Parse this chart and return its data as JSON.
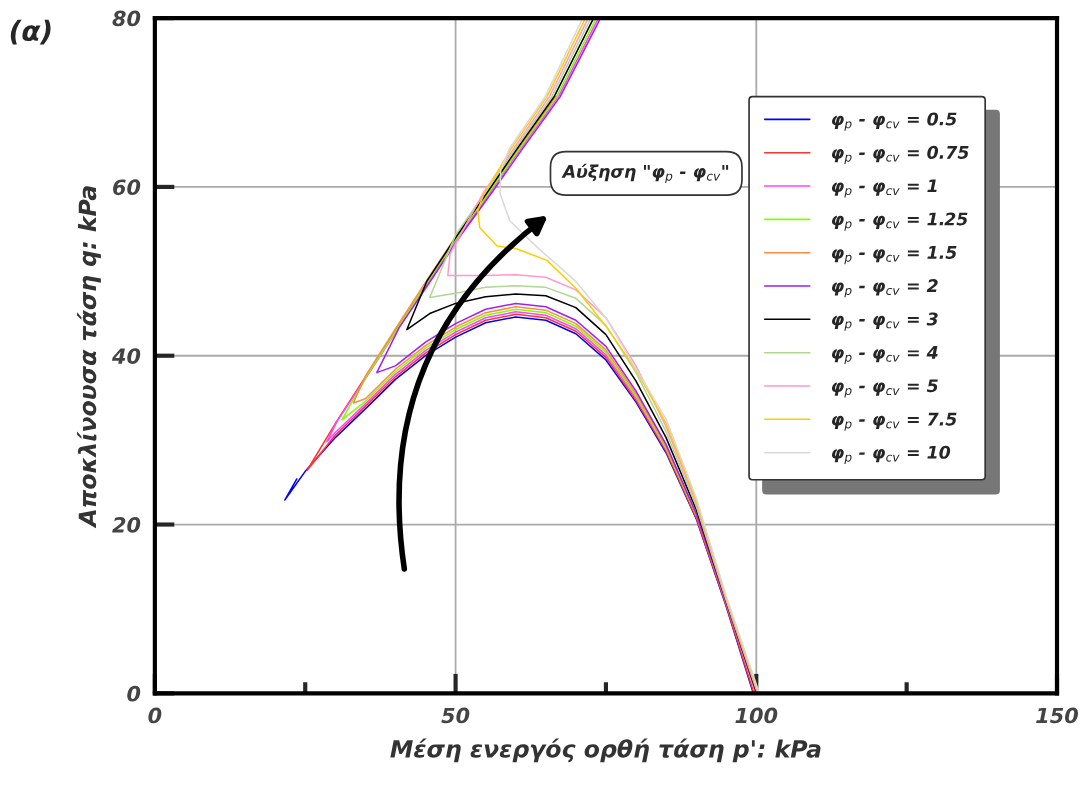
{
  "chart_data": {
    "type": "line",
    "title": "(α)",
    "xlabel": "Μέση ενεργός ορθή τάση p': kPa",
    "ylabel": "Αποκλίνουσα τάση q: kPa",
    "xlim": [
      0,
      150
    ],
    "ylim": [
      0,
      80
    ],
    "xticks": [
      0,
      {
        "value": 25,
        "label": null
      },
      50,
      {
        "value": 75,
        "label": null
      },
      100,
      {
        "value": 125,
        "label": null
      },
      150
    ],
    "yticks": [
      0,
      20,
      40,
      60,
      80
    ],
    "grid": true,
    "legend": "right",
    "marker": "none",
    "line_style": "solid",
    "annotations": [
      "Αύξηση \"φ$_{p}$ - φ$_{cv}$\""
    ],
    "series": [
      {
        "name": "φ$_{p}$ - φ$_{cv}$ = 0.5",
        "color": "#0000ff",
        "x": [
          99.5,
          95,
          90,
          85,
          80,
          75,
          70,
          65,
          60,
          55,
          50,
          45,
          40,
          35,
          30,
          25,
          21.6,
          23.6
        ],
        "values": [
          0,
          10.3,
          20.7,
          28.5,
          34.5,
          39.5,
          42.6,
          44.2,
          44.6,
          43.9,
          42.2,
          40.0,
          37.2,
          33.7,
          30.3,
          26.3,
          22.9,
          25.4
        ]
      },
      {
        "name": "φ$_{p}$ - φ$_{cv}$ = 0.75",
        "color": "#ff3333",
        "x": [
          99.6,
          95,
          90,
          85,
          80,
          75,
          70,
          65,
          60,
          55,
          50,
          45,
          40,
          35,
          30,
          25.3,
          30.2,
          35.2,
          40.3,
          45.4,
          50.5,
          55.5,
          60.6,
          66.7
        ],
        "values": [
          0,
          10.4,
          20.8,
          28.7,
          34.7,
          39.8,
          42.9,
          44.5,
          44.9,
          44.2,
          42.5,
          40.3,
          37.5,
          34.0,
          30.6,
          26.4,
          32.2,
          37.7,
          43.3,
          48.8,
          54.3,
          59.4,
          64.6,
          70.7
        ]
      },
      {
        "name": "φ$_{p}$ - φ$_{cv}$ = 1",
        "color": "#ff44ff",
        "x": [
          85,
          80,
          75,
          70,
          65,
          60,
          55,
          50,
          45,
          40,
          35,
          30,
          28.6,
          30.25,
          35.4,
          40.5,
          45.6,
          50.7,
          55.8,
          60.9,
          67.1,
          73.75
        ],
        "values": [
          28.9,
          35.0,
          40.1,
          43.2,
          44.8,
          45.2,
          44.5,
          42.8,
          40.6,
          37.8,
          34.3,
          30.9,
          29.8,
          32.2,
          37.7,
          43.3,
          48.8,
          54.3,
          59.4,
          64.6,
          70.7,
          80
        ]
      },
      {
        "name": "φ$_{p}$ - φ$_{cv}$ = 1.25",
        "color": "#80ff00",
        "x": [
          90,
          85,
          80,
          75,
          70,
          65,
          60,
          55,
          50,
          45,
          40,
          35,
          31.1,
          35.3,
          40.4,
          45.4,
          50.5,
          55.6,
          60.7,
          66.8,
          73.4
        ],
        "values": [
          21.1,
          29.0,
          35.2,
          40.4,
          43.5,
          45.1,
          45.5,
          44.8,
          43.1,
          40.9,
          38.1,
          34.6,
          32.4,
          37.7,
          43.3,
          48.8,
          54.3,
          59.4,
          64.6,
          70.7,
          80
        ]
      },
      {
        "name": "φ$_{p}$ - φ$_{cv}$ = 1.5",
        "color": "#ff8c40",
        "x": [
          99.9,
          95,
          90,
          85,
          80,
          75,
          70,
          65,
          60,
          55,
          50,
          45,
          40,
          35,
          33,
          35.1,
          40.1,
          45.1,
          50.2,
          55.2,
          60.2,
          66.3
        ],
        "values": [
          0,
          10.7,
          21.2,
          29.2,
          35.5,
          40.7,
          43.8,
          45.4,
          45.8,
          45.1,
          43.4,
          41.2,
          38.4,
          34.9,
          34.4,
          37.7,
          43.3,
          48.8,
          54.3,
          59.4,
          64.6,
          70.7
        ]
      },
      {
        "name": "φ$_{p}$ - φ$_{cv}$ = 2",
        "color": "#a020f0",
        "x": [
          100,
          95,
          90,
          85,
          80,
          75,
          70,
          65,
          60,
          55,
          50,
          45,
          40,
          36.9,
          40.6,
          45.8,
          50.9,
          56.1,
          61.2,
          67.4,
          74.1
        ],
        "values": [
          0,
          10.8,
          21.3,
          29.5,
          35.8,
          41.1,
          44.2,
          45.8,
          46.2,
          45.5,
          43.8,
          41.6,
          38.8,
          38.0,
          43.3,
          48.8,
          54.3,
          59.4,
          64.6,
          70.7,
          80
        ]
      },
      {
        "name": "φ$_{p}$ - φ$_{cv}$ = 3",
        "color": "#000000",
        "x": [
          100.1,
          95,
          90,
          85,
          80,
          75,
          70,
          65,
          60,
          55,
          50,
          45.7,
          41.9,
          45.2,
          50.3,
          55.3,
          60.3,
          66.4,
          72.95
        ],
        "values": [
          0,
          10.9,
          21.8,
          30.3,
          37.0,
          42.5,
          45.7,
          47.1,
          47.3,
          47.0,
          46.2,
          45.0,
          43.1,
          48.8,
          54.3,
          59.4,
          64.6,
          70.7,
          80
        ]
      },
      {
        "name": "φ$_{p}$ - φ$_{cv}$ = 4",
        "color": "#b0d890",
        "x": [
          100.2,
          95,
          90,
          85,
          80,
          75,
          70,
          65,
          60,
          55,
          50,
          45.7,
          50,
          55,
          60,
          66,
          72.5
        ],
        "values": [
          0,
          11.0,
          22.2,
          31.0,
          38.0,
          43.6,
          46.8,
          48.1,
          48.3,
          48.1,
          47.4,
          46.9,
          54.3,
          59.4,
          64.6,
          70.7,
          80
        ]
      },
      {
        "name": "φ$_{p}$ - φ$_{cv}$ = 5",
        "color": "#ff99cc",
        "x": [
          100.3,
          95,
          90,
          85,
          80,
          75,
          70,
          65,
          60,
          55,
          48.7,
          49.1,
          54.7,
          59.7,
          65.6,
          72.05
        ],
        "values": [
          0,
          11.2,
          22.6,
          31.6,
          38.8,
          44.5,
          47.8,
          49.3,
          49.6,
          49.5,
          49.5,
          52.1,
          59.4,
          64.6,
          70.7,
          80
        ]
      },
      {
        "name": "φ$_{p}$ - φ$_{cv}$ = 7.5",
        "color": "#ffcc00",
        "x": [
          100.4,
          95,
          90,
          85,
          80,
          75,
          70,
          65.2,
          60,
          56.9,
          54,
          53.7,
          54.6,
          59.3,
          65.2,
          71.6
        ],
        "values": [
          0,
          11.4,
          22.9,
          32.0,
          38.3,
          43.5,
          48.0,
          51.3,
          52.7,
          53.0,
          55.2,
          57.2,
          59.0,
          64.6,
          70.7,
          80
        ]
      },
      {
        "name": "φ$_{p}$ - φ$_{cv}$ = 10",
        "color": "#d9d9d9",
        "x": [
          100.5,
          95,
          90,
          85,
          78.7,
          75,
          70,
          63.5,
          59,
          57.4,
          57.5,
          59.0,
          64.9,
          71.15
        ],
        "values": [
          0,
          11.5,
          23.2,
          32.5,
          40,
          44.5,
          48.8,
          52.9,
          56,
          59.2,
          62.0,
          64.6,
          70.7,
          80
        ]
      }
    ]
  }
}
